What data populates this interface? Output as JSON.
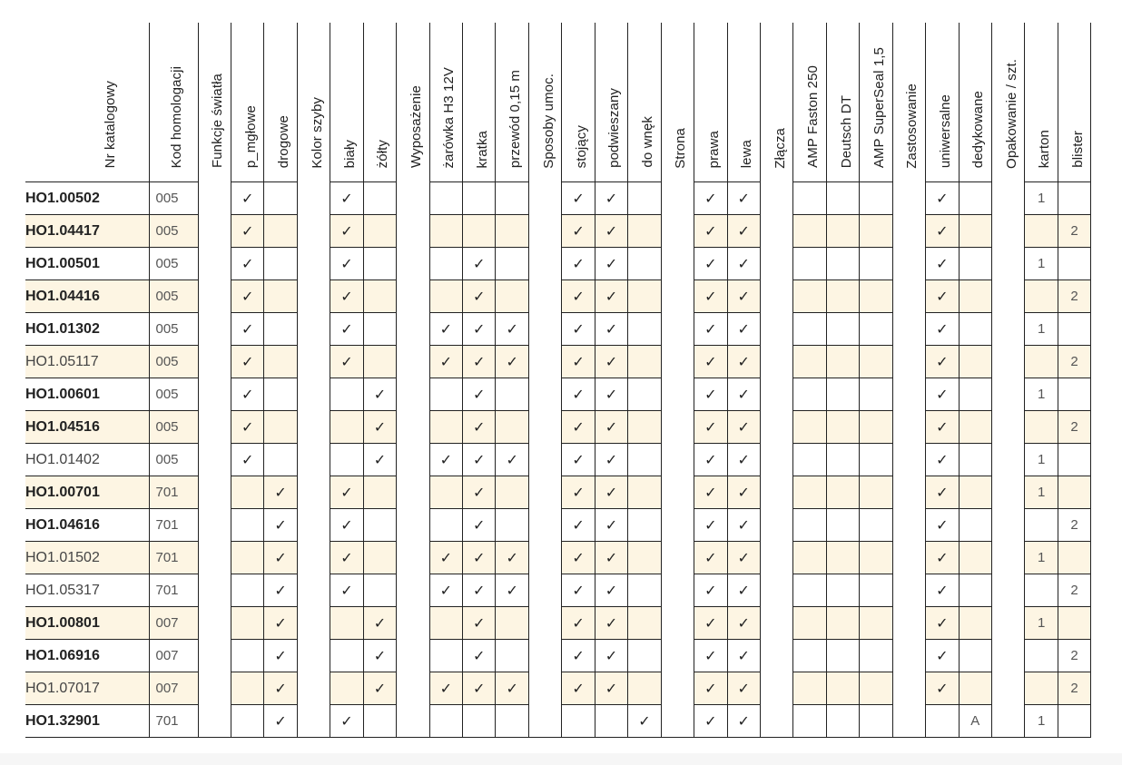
{
  "colors": {
    "row_shade": "#fdf5e3",
    "border": "#222222"
  },
  "check_symbol": "✓",
  "columns": [
    {
      "label": "Nr katalogowy",
      "type": "nr"
    },
    {
      "label": "Kod homologacji",
      "type": "kod"
    },
    {
      "label": "Funkcje światła",
      "type": "section"
    },
    {
      "label": "p_mgłowe",
      "type": "data"
    },
    {
      "label": "drogowe",
      "type": "data"
    },
    {
      "label": "Kolor szyby",
      "type": "section"
    },
    {
      "label": "biały",
      "type": "data"
    },
    {
      "label": "żółty",
      "type": "data"
    },
    {
      "label": "Wyposażenie",
      "type": "section"
    },
    {
      "label": "żarówka H3 12V",
      "type": "data"
    },
    {
      "label": "kratka",
      "type": "data"
    },
    {
      "label": "przewód 0,15 m",
      "type": "data"
    },
    {
      "label": "Sposoby umoc.",
      "type": "section"
    },
    {
      "label": "stojący",
      "type": "data"
    },
    {
      "label": "podwieszany",
      "type": "data"
    },
    {
      "label": "do wnęk",
      "type": "data"
    },
    {
      "label": "Strona",
      "type": "section"
    },
    {
      "label": "prawa",
      "type": "data"
    },
    {
      "label": "lewa",
      "type": "data"
    },
    {
      "label": "Złącza",
      "type": "section"
    },
    {
      "label": "AMP Faston 250",
      "type": "data"
    },
    {
      "label": "Deutsch DT",
      "type": "data"
    },
    {
      "label": "AMP SuperSeal 1,5",
      "type": "data"
    },
    {
      "label": "Zastosowanie",
      "type": "section"
    },
    {
      "label": "uniwersalne",
      "type": "data"
    },
    {
      "label": "dedykowane",
      "type": "data"
    },
    {
      "label": "Opakowanie / szt.",
      "type": "section"
    },
    {
      "label": "karton",
      "type": "data"
    },
    {
      "label": "blister",
      "type": "data"
    }
  ],
  "rows": [
    {
      "nr": "HO1.00502",
      "bold": true,
      "kod": "005",
      "shaded": false,
      "values": [
        "x",
        "",
        "x",
        "",
        "",
        "",
        "",
        "x",
        "x",
        "",
        "x",
        "x",
        "",
        "",
        "",
        "x",
        "",
        "1",
        ""
      ]
    },
    {
      "nr": "HO1.04417",
      "bold": true,
      "kod": "005",
      "shaded": true,
      "values": [
        "x",
        "",
        "x",
        "",
        "",
        "",
        "",
        "x",
        "x",
        "",
        "x",
        "x",
        "",
        "",
        "",
        "x",
        "",
        "",
        "2"
      ]
    },
    {
      "nr": "HO1.00501",
      "bold": true,
      "kod": "005",
      "shaded": false,
      "values": [
        "x",
        "",
        "x",
        "",
        "",
        "x",
        "",
        "x",
        "x",
        "",
        "x",
        "x",
        "",
        "",
        "",
        "x",
        "",
        "1",
        ""
      ]
    },
    {
      "nr": "HO1.04416",
      "bold": true,
      "kod": "005",
      "shaded": true,
      "values": [
        "x",
        "",
        "x",
        "",
        "",
        "x",
        "",
        "x",
        "x",
        "",
        "x",
        "x",
        "",
        "",
        "",
        "x",
        "",
        "",
        "2"
      ]
    },
    {
      "nr": "HO1.01302",
      "bold": true,
      "kod": "005",
      "shaded": false,
      "values": [
        "x",
        "",
        "x",
        "",
        "x",
        "x",
        "x",
        "x",
        "x",
        "",
        "x",
        "x",
        "",
        "",
        "",
        "x",
        "",
        "1",
        ""
      ]
    },
    {
      "nr": "HO1.05117",
      "bold": false,
      "kod": "005",
      "shaded": true,
      "values": [
        "x",
        "",
        "x",
        "",
        "x",
        "x",
        "x",
        "x",
        "x",
        "",
        "x",
        "x",
        "",
        "",
        "",
        "x",
        "",
        "",
        "2"
      ]
    },
    {
      "nr": "HO1.00601",
      "bold": true,
      "kod": "005",
      "shaded": false,
      "values": [
        "x",
        "",
        "",
        "x",
        "",
        "x",
        "",
        "x",
        "x",
        "",
        "x",
        "x",
        "",
        "",
        "",
        "x",
        "",
        "1",
        ""
      ]
    },
    {
      "nr": "HO1.04516",
      "bold": true,
      "kod": "005",
      "shaded": true,
      "values": [
        "x",
        "",
        "",
        "x",
        "",
        "x",
        "",
        "x",
        "x",
        "",
        "x",
        "x",
        "",
        "",
        "",
        "x",
        "",
        "",
        "2"
      ]
    },
    {
      "nr": "HO1.01402",
      "bold": false,
      "kod": "005",
      "shaded": false,
      "values": [
        "x",
        "",
        "",
        "x",
        "x",
        "x",
        "x",
        "x",
        "x",
        "",
        "x",
        "x",
        "",
        "",
        "",
        "x",
        "",
        "1",
        ""
      ]
    },
    {
      "nr": "HO1.00701",
      "bold": true,
      "kod": "701",
      "shaded": true,
      "values": [
        "",
        "x",
        "x",
        "",
        "",
        "x",
        "",
        "x",
        "x",
        "",
        "x",
        "x",
        "",
        "",
        "",
        "x",
        "",
        "1",
        ""
      ]
    },
    {
      "nr": "HO1.04616",
      "bold": true,
      "kod": "701",
      "shaded": false,
      "values": [
        "",
        "x",
        "x",
        "",
        "",
        "x",
        "",
        "x",
        "x",
        "",
        "x",
        "x",
        "",
        "",
        "",
        "x",
        "",
        "",
        "2"
      ]
    },
    {
      "nr": "HO1.01502",
      "bold": false,
      "kod": "701",
      "shaded": true,
      "values": [
        "",
        "x",
        "x",
        "",
        "x",
        "x",
        "x",
        "x",
        "x",
        "",
        "x",
        "x",
        "",
        "",
        "",
        "x",
        "",
        "1",
        ""
      ]
    },
    {
      "nr": "HO1.05317",
      "bold": false,
      "kod": "701",
      "shaded": false,
      "values": [
        "",
        "x",
        "x",
        "",
        "x",
        "x",
        "x",
        "x",
        "x",
        "",
        "x",
        "x",
        "",
        "",
        "",
        "x",
        "",
        "",
        "2"
      ]
    },
    {
      "nr": "HO1.00801",
      "bold": true,
      "kod": "007",
      "shaded": true,
      "values": [
        "",
        "x",
        "",
        "x",
        "",
        "x",
        "",
        "x",
        "x",
        "",
        "x",
        "x",
        "",
        "",
        "",
        "x",
        "",
        "1",
        ""
      ]
    },
    {
      "nr": "HO1.06916",
      "bold": true,
      "kod": "007",
      "shaded": false,
      "values": [
        "",
        "x",
        "",
        "x",
        "",
        "x",
        "",
        "x",
        "x",
        "",
        "x",
        "x",
        "",
        "",
        "",
        "x",
        "",
        "",
        "2"
      ]
    },
    {
      "nr": "HO1.07017",
      "bold": false,
      "kod": "007",
      "shaded": true,
      "values": [
        "",
        "x",
        "",
        "x",
        "x",
        "x",
        "x",
        "x",
        "x",
        "",
        "x",
        "x",
        "",
        "",
        "",
        "x",
        "",
        "",
        "2"
      ]
    },
    {
      "nr": "HO1.32901",
      "bold": true,
      "kod": "701",
      "shaded": false,
      "values": [
        "",
        "x",
        "x",
        "",
        "",
        "",
        "",
        "",
        "",
        "x",
        "x",
        "x",
        "",
        "",
        "",
        "",
        "A",
        "1",
        ""
      ]
    }
  ]
}
